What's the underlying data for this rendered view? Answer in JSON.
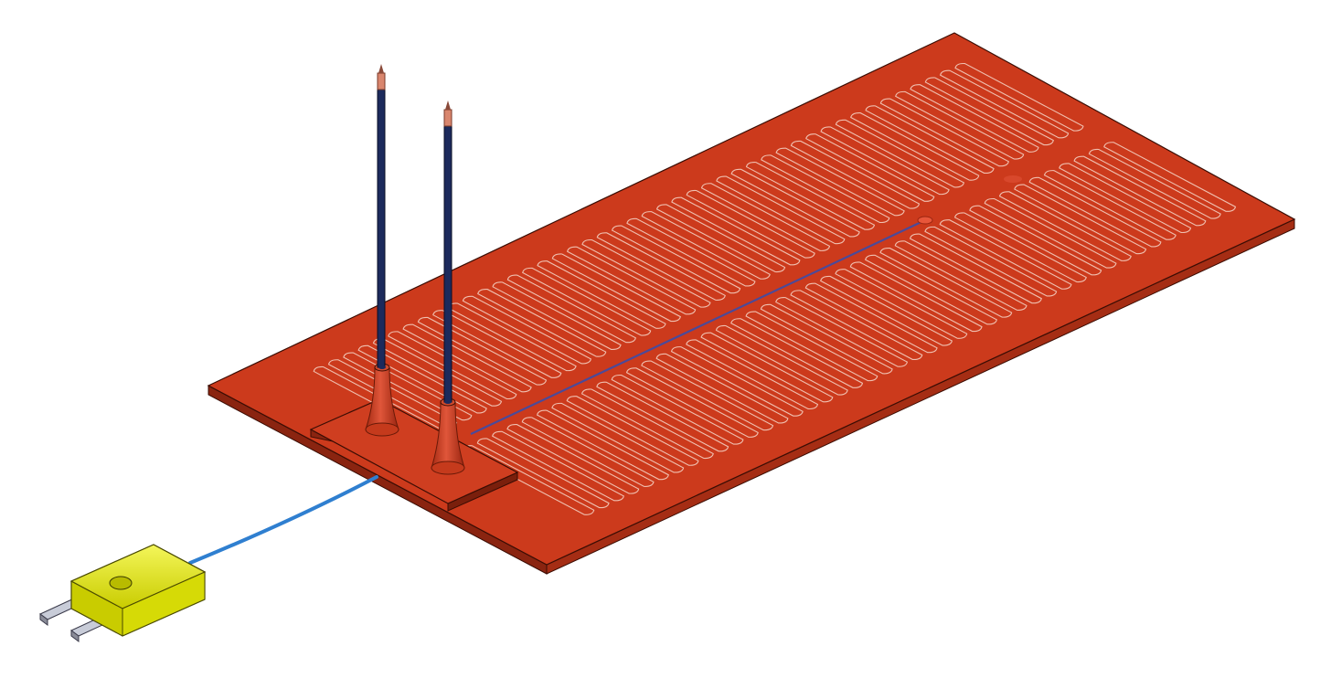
{
  "scene": {
    "background": "#ffffff",
    "subject": "silicone-heater-mat-with-thermocouple",
    "colors": {
      "heater_body": "#cc3a1c",
      "heater_edge": "#7a1a08",
      "trace_outline": "#f0c0b0",
      "lead_wire": "#1c2a5c",
      "lead_tip": "#d9866e",
      "sensor_cable": "#2f7fd0",
      "connector_body": "#e8ec10",
      "connector_pins": "#c8ccd8"
    },
    "heater": {
      "trace_loops_per_row": 44,
      "trace_rows": 2
    },
    "leads": {
      "count": 2
    },
    "connector": {
      "pin_count": 2
    }
  }
}
